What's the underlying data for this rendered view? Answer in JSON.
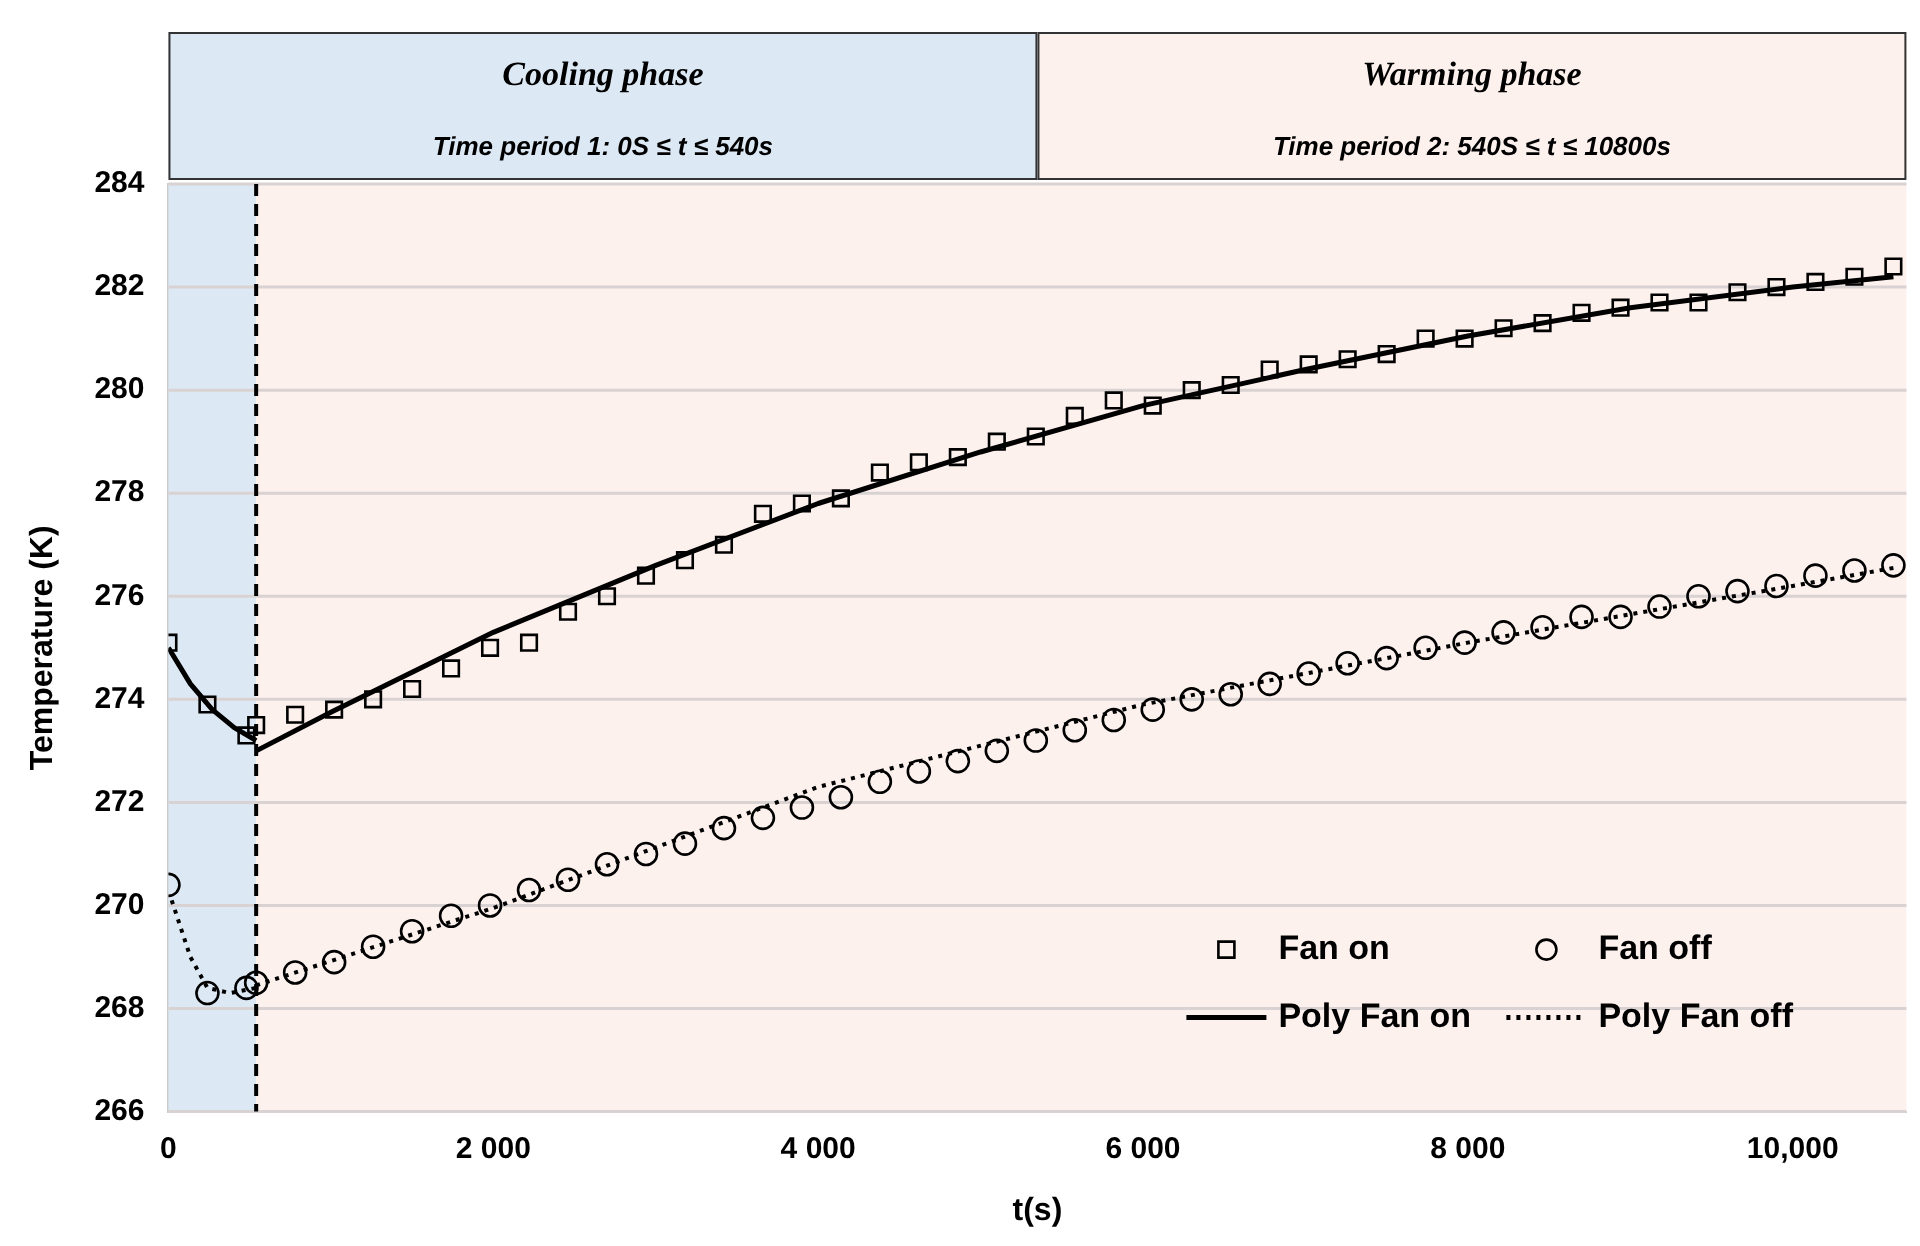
{
  "chart_data": {
    "type": "scatter",
    "xlabel": "t(s)",
    "ylabel": "Temperature (K)",
    "xlim": [
      0,
      10700
    ],
    "xticks": [
      0,
      {
        "value": 2000,
        "label": "2 000"
      },
      {
        "value": 4000,
        "label": "4 000"
      },
      {
        "value": 6000,
        "label": "6 000"
      },
      {
        "value": 8000,
        "label": "8 000"
      },
      {
        "value": 10000,
        "label": "10,000"
      }
    ],
    "ylim": [
      266,
      284
    ],
    "yticks": [
      266,
      268,
      270,
      272,
      274,
      276,
      278,
      280,
      282,
      284
    ],
    "grid": "y",
    "legend": "bottom right",
    "bands": [
      {
        "axis": "x",
        "from": 0,
        "to": 540,
        "color": "#dce9f5"
      },
      {
        "axis": "x",
        "from": 540,
        "to": 10700,
        "color": "#fdf1ee"
      }
    ],
    "annotations": [
      "Cooling phase",
      "Time period 1: 0S ≤ t ≤ 540s",
      "Warming phase",
      "Time period 2: 540S ≤ t ≤ 10800s"
    ],
    "ref_lines": [
      {
        "axis": "x",
        "value": 540,
        "color": "#000000",
        "line_style": "dashed"
      }
    ],
    "series": [
      {
        "name": "Fan on",
        "marker": "square",
        "color": "#000000",
        "x": [
          0,
          240,
          480,
          540,
          780,
          1020,
          1260,
          1500,
          1740,
          1980,
          2220,
          2460,
          2700,
          2940,
          3180,
          3420,
          3660,
          3900,
          4140,
          4380,
          4620,
          4860,
          5100,
          5340,
          5580,
          5820,
          6060,
          6300,
          6540,
          6780,
          7020,
          7260,
          7500,
          7740,
          7980,
          8220,
          8460,
          8700,
          8940,
          9180,
          9420,
          9660,
          9900,
          10140,
          10380,
          10620
        ],
        "values": [
          275.1,
          273.9,
          273.3,
          273.5,
          273.7,
          273.8,
          274.0,
          274.2,
          274.6,
          275.0,
          275.1,
          275.7,
          276.0,
          276.4,
          276.7,
          277.0,
          277.6,
          277.8,
          277.9,
          278.4,
          278.6,
          278.7,
          279.0,
          279.1,
          279.5,
          279.8,
          279.7,
          280.0,
          280.1,
          280.4,
          280.5,
          280.6,
          280.7,
          281.0,
          281.0,
          281.2,
          281.3,
          281.5,
          281.6,
          281.7,
          281.7,
          281.9,
          282.0,
          282.1,
          282.2,
          282.4
        ]
      },
      {
        "name": "Fan off",
        "marker": "circle",
        "color": "#000000",
        "x": [
          0,
          240,
          480,
          540,
          780,
          1020,
          1260,
          1500,
          1740,
          1980,
          2220,
          2460,
          2700,
          2940,
          3180,
          3420,
          3660,
          3900,
          4140,
          4380,
          4620,
          4860,
          5100,
          5340,
          5580,
          5820,
          6060,
          6300,
          6540,
          6780,
          7020,
          7260,
          7500,
          7740,
          7980,
          8220,
          8460,
          8700,
          8940,
          9180,
          9420,
          9660,
          9900,
          10140,
          10380,
          10620
        ],
        "values": [
          270.4,
          268.3,
          268.4,
          268.5,
          268.7,
          268.9,
          269.2,
          269.5,
          269.8,
          270.0,
          270.3,
          270.5,
          270.8,
          271.0,
          271.2,
          271.5,
          271.7,
          271.9,
          272.1,
          272.4,
          272.6,
          272.8,
          273.0,
          273.2,
          273.4,
          273.6,
          273.8,
          274.0,
          274.1,
          274.3,
          274.5,
          274.7,
          274.8,
          275.0,
          275.1,
          275.3,
          275.4,
          275.6,
          275.6,
          275.8,
          276.0,
          276.1,
          276.2,
          276.4,
          276.5,
          276.6
        ]
      },
      {
        "name": "Poly Fan on",
        "type": "line",
        "marker": "none",
        "line_style": "solid",
        "color": "#000000",
        "x": [
          540,
          1000,
          2000,
          3000,
          4000,
          5000,
          6000,
          7000,
          8000,
          9000,
          10000,
          10620
        ],
        "values": [
          273.0,
          273.75,
          275.3,
          276.6,
          277.8,
          278.8,
          279.7,
          280.4,
          281.05,
          281.6,
          282.0,
          282.2
        ]
      },
      {
        "type": "line",
        "marker": "none",
        "line_style": "solid",
        "color": "#000000",
        "x": [
          0,
          135,
          270,
          405,
          540
        ],
        "values": [
          275.0,
          274.3,
          273.8,
          273.45,
          273.2
        ]
      },
      {
        "name": "Poly Fan off",
        "type": "line",
        "marker": "none",
        "line_style": "dotted",
        "color": "#000000",
        "x": [
          540,
          2000,
          4000,
          6000,
          8000,
          10000,
          10620
        ],
        "values": [
          268.45,
          269.95,
          272.3,
          273.9,
          275.1,
          276.2,
          276.55
        ]
      },
      {
        "type": "line",
        "marker": "none",
        "line_style": "dotted",
        "color": "#000000",
        "x": [
          20,
          135,
          240,
          380,
          540
        ],
        "values": [
          270.1,
          269.0,
          268.4,
          268.3,
          268.4
        ]
      }
    ]
  }
}
